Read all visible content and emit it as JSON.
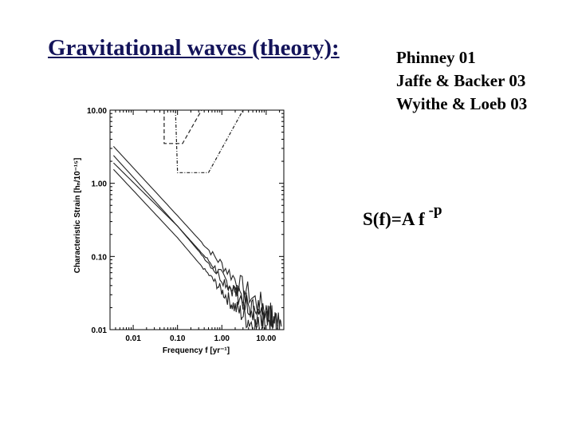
{
  "slide": {
    "title": "Gravitational waves (theory):",
    "references": [
      "Phinney 01",
      "Jaffe & Backer 03",
      "Wyithe & Loeb 03"
    ],
    "formula": {
      "main": "S(f)=A f",
      "exponent": "-p"
    }
  },
  "colors": {
    "title": "#14145a",
    "text": "#000000",
    "lines": "#222222"
  },
  "chart_data": {
    "type": "line",
    "xlabel": "Frequency  f  [yr⁻¹]",
    "ylabel": "Characteristic Strain  [hₙ/10⁻¹⁵]",
    "xscale": "log",
    "yscale": "log",
    "xlim": [
      0.003,
      25
    ],
    "ylim": [
      0.01,
      10
    ],
    "xticks": [
      {
        "value": 0.01,
        "label": "0.01"
      },
      {
        "value": 0.1,
        "label": "0.10"
      },
      {
        "value": 1,
        "label": "1.00"
      },
      {
        "value": 10,
        "label": "10.00"
      }
    ],
    "yticks": [
      {
        "value": 10,
        "label": "10.00"
      },
      {
        "value": 1,
        "label": "1.00"
      },
      {
        "value": 0.1,
        "label": "0.10"
      },
      {
        "value": 0.01,
        "label": "0.01"
      }
    ],
    "series": [
      {
        "style": "solid",
        "points": [
          [
            0.0036,
            3.2
          ],
          [
            0.1,
            0.36
          ],
          [
            1,
            0.078
          ],
          [
            10,
            0.017
          ],
          [
            22,
            0.011
          ]
        ]
      },
      {
        "style": "solid",
        "points": [
          [
            0.0036,
            1.9
          ],
          [
            0.1,
            0.26
          ],
          [
            0.7,
            0.07
          ],
          [
            3,
            0.025
          ],
          [
            14,
            0.01
          ]
        ]
      },
      {
        "style": "solid",
        "points": [
          [
            0.0036,
            2.4
          ],
          [
            0.1,
            0.26
          ],
          [
            1,
            0.05
          ],
          [
            5,
            0.02
          ],
          [
            20,
            0.01
          ]
        ]
      },
      {
        "style": "solid",
        "points": [
          [
            0.0036,
            1.55
          ],
          [
            0.1,
            0.18
          ],
          [
            0.6,
            0.05
          ],
          [
            2,
            0.02
          ],
          [
            7,
            0.01
          ]
        ]
      },
      {
        "style": "dashed",
        "points": [
          [
            0.05,
            10
          ],
          [
            0.05,
            3.5
          ],
          [
            0.13,
            3.5
          ],
          [
            0.35,
            10
          ]
        ]
      },
      {
        "style": "dashdot",
        "points": [
          [
            0.09,
            10
          ],
          [
            0.1,
            1.4
          ],
          [
            0.5,
            1.4
          ],
          [
            3,
            10
          ]
        ]
      }
    ]
  }
}
